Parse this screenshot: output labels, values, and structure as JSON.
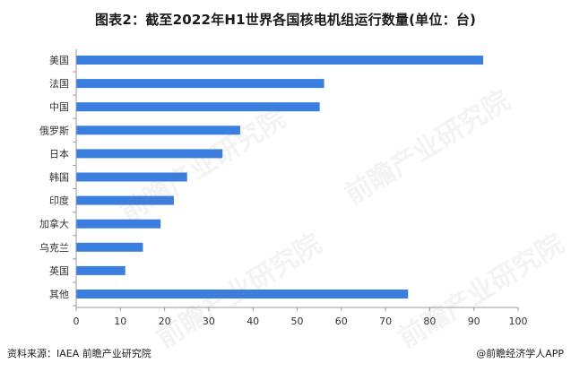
{
  "title": "图表2：截至2022年H1世界各国核电机组运行数量(单位：台)",
  "footer": {
    "source": "资料来源：IAEA 前瞻产业研究院",
    "credit": "@前瞻经济学人APP"
  },
  "watermark": "前瞻产业研究院",
  "colors": {
    "bar": "#3a7ee0",
    "axis": "#999999",
    "text": "#333333"
  },
  "chart_data": {
    "type": "bar",
    "orientation": "horizontal",
    "title": "图表2：截至2022年H1世界各国核电机组运行数量(单位：台)",
    "categories": [
      "美国",
      "法国",
      "中国",
      "俄罗斯",
      "日本",
      "韩国",
      "印度",
      "加拿大",
      "乌克兰",
      "英国",
      "其他"
    ],
    "values": [
      92,
      56,
      55,
      37,
      33,
      25,
      22,
      19,
      15,
      11,
      75
    ],
    "xlim": [
      0,
      100
    ],
    "xticks": [
      0,
      10,
      20,
      30,
      40,
      50,
      60,
      70,
      80,
      90,
      100
    ],
    "grid": false,
    "legend": "none"
  }
}
